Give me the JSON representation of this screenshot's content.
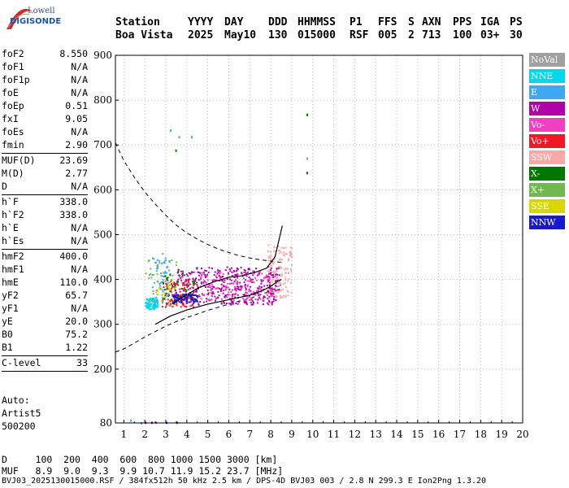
{
  "logo": {
    "line1": "Lowell",
    "line2": "DIGISONDE"
  },
  "header": {
    "labels": [
      "Station",
      "YYYY",
      "DAY",
      "DDD",
      "HHMMSS",
      "P1",
      "FFS",
      "S",
      "AXN",
      "PPS",
      "IGA",
      "PS"
    ],
    "values": [
      "Boa Vista",
      "2025",
      "May10",
      "130",
      "015000",
      "RSF",
      "005",
      "2",
      "713",
      "100",
      "03+",
      "30"
    ]
  },
  "params": [
    {
      "label": "foF2",
      "value": "8.550"
    },
    {
      "label": "foF1",
      "value": "N/A"
    },
    {
      "label": "foF1p",
      "value": "N/A"
    },
    {
      "label": "foE",
      "value": "N/A"
    },
    {
      "label": "foEp",
      "value": "0.51"
    },
    {
      "label": "fxI",
      "value": "9.05"
    },
    {
      "label": "foEs",
      "value": "N/A"
    },
    {
      "label": "fmin",
      "value": "2.90"
    },
    {
      "sep": true
    },
    {
      "label": "MUF(D)",
      "value": "23.69"
    },
    {
      "label": "M(D)",
      "value": "2.77"
    },
    {
      "label": "D",
      "value": "N/A"
    },
    {
      "sep": true
    },
    {
      "label": "h`F",
      "value": "338.0"
    },
    {
      "label": "h`F2",
      "value": "338.0"
    },
    {
      "label": "h`E",
      "value": "N/A"
    },
    {
      "label": "h`Es",
      "value": "N/A"
    },
    {
      "sep": true
    },
    {
      "label": "hmF2",
      "value": "400.0"
    },
    {
      "label": "hmF1",
      "value": "N/A"
    },
    {
      "label": "hmE",
      "value": "110.0"
    },
    {
      "label": "yF2",
      "value": "65.7"
    },
    {
      "label": "yF1",
      "value": "N/A"
    },
    {
      "label": "yE",
      "value": "20.0"
    },
    {
      "label": "B0",
      "value": "75.2"
    },
    {
      "label": "B1",
      "value": "1.22"
    },
    {
      "sep": true
    },
    {
      "label": "C-level",
      "value": "33"
    },
    {
      "sep": true
    }
  ],
  "meta": {
    "auto": "Auto:",
    "artist": "Artist5",
    "version": "500200"
  },
  "legend": [
    {
      "label": "NoVal",
      "color": "#a0a0a0"
    },
    {
      "label": "NNE",
      "color": "#00d8f0"
    },
    {
      "label": "E",
      "color": "#40a8f0"
    },
    {
      "label": "W",
      "color": "#b000a8"
    },
    {
      "label": "Vo-",
      "color": "#f040c0"
    },
    {
      "label": "Vo+",
      "color": "#f01828"
    },
    {
      "label": "SSW",
      "color": "#f8a8a8"
    },
    {
      "label": "X-",
      "color": "#007800"
    },
    {
      "label": "X+",
      "color": "#70b850"
    },
    {
      "label": "SSE",
      "color": "#d8d800"
    },
    {
      "label": "NNW",
      "color": "#1818d0"
    }
  ],
  "distance_table": {
    "d_label": "D",
    "d_values": [
      "100",
      "200",
      "400",
      "600",
      "800",
      "1000",
      "1500",
      "3000"
    ],
    "d_unit": "[km]",
    "muf_label": "MUF",
    "muf_values": [
      "8.9",
      "9.0",
      "9.3",
      "9.9",
      "10.7",
      "11.9",
      "15.2",
      "23.7"
    ],
    "muf_unit": "[MHz]"
  },
  "footer": "BVJ03_2025130015000.RSF / 384fx512h 50 kHz 2.5 km / DPS-4D BVJ03 003 / 2.8 N 299.3 E Ion2Png 1.3.20",
  "chart_data": {
    "type": "scatter",
    "x_ticks": [
      1,
      2,
      3,
      4,
      5,
      6,
      7,
      8,
      9,
      10,
      11,
      12,
      13,
      14,
      15,
      16,
      17,
      18,
      19,
      20
    ],
    "y_ticks": [
      80,
      200,
      300,
      400,
      500,
      600,
      700,
      800,
      900
    ],
    "xlim": [
      0.6,
      20
    ],
    "ylim": [
      80,
      900
    ],
    "grid": true,
    "legend_position": "right",
    "profile_line": [
      [
        2.5,
        300
      ],
      [
        3.2,
        318
      ],
      [
        4.0,
        332
      ],
      [
        5.0,
        345
      ],
      [
        6.0,
        355
      ],
      [
        7.0,
        365
      ],
      [
        7.6,
        375
      ],
      [
        8.0,
        385
      ],
      [
        8.3,
        395
      ],
      [
        8.5,
        400
      ]
    ],
    "trace_line": [
      [
        3.3,
        345
      ],
      [
        3.8,
        360
      ],
      [
        4.5,
        380
      ],
      [
        5.3,
        395
      ],
      [
        6.0,
        405
      ],
      [
        6.6,
        408
      ],
      [
        7.2,
        415
      ],
      [
        7.8,
        425
      ],
      [
        8.2,
        450
      ],
      [
        8.55,
        520
      ]
    ],
    "muf_curve_upper": [
      [
        0.6,
        705
      ],
      [
        1.0,
        665
      ],
      [
        1.5,
        628
      ],
      [
        2.0,
        595
      ],
      [
        2.5,
        568
      ],
      [
        3.0,
        543
      ],
      [
        3.5,
        521
      ],
      [
        4.0,
        504
      ],
      [
        4.5,
        490
      ],
      [
        5.0,
        478
      ],
      [
        5.5,
        468
      ],
      [
        6.0,
        460
      ],
      [
        6.5,
        453
      ],
      [
        7.0,
        448
      ],
      [
        7.5,
        444
      ],
      [
        8.0,
        441
      ],
      [
        8.5,
        438
      ]
    ],
    "muf_curve_lower": [
      [
        0.6,
        238
      ],
      [
        1.0,
        245
      ],
      [
        1.5,
        258
      ],
      [
        2.0,
        272
      ],
      [
        2.5,
        284
      ],
      [
        3.0,
        296
      ],
      [
        3.5,
        306
      ],
      [
        4.0,
        315
      ],
      [
        4.5,
        323
      ],
      [
        5.0,
        331
      ],
      [
        5.5,
        338
      ],
      [
        6.0,
        345
      ],
      [
        6.5,
        352
      ],
      [
        7.0,
        358
      ],
      [
        7.5,
        366
      ],
      [
        8.0,
        375
      ],
      [
        8.5,
        388
      ]
    ],
    "clusters": [
      {
        "name": "NNE",
        "color": "#00d8f0",
        "x": [
          2.0,
          2.6
        ],
        "y": [
          335,
          360
        ],
        "n": 90
      },
      {
        "name": "E",
        "color": "#40a8f0",
        "x": [
          2.3,
          3.2
        ],
        "y": [
          340,
          450
        ],
        "n": 70
      },
      {
        "name": "W",
        "color": "#b000a8",
        "x": [
          3.4,
          8.4
        ],
        "y": [
          345,
          430
        ],
        "n": 420
      },
      {
        "name": "Vo-",
        "color": "#f040c0",
        "x": [
          4.5,
          8.0
        ],
        "y": [
          355,
          420
        ],
        "n": 120
      },
      {
        "name": "Vo+",
        "color": "#f01828",
        "x": [
          2.8,
          4.3
        ],
        "y": [
          340,
          400
        ],
        "n": 110
      },
      {
        "name": "SSW",
        "color": "#f8a8a8",
        "x": [
          7.8,
          9.0
        ],
        "y": [
          360,
          480
        ],
        "n": 140
      },
      {
        "name": "X-",
        "color": "#007800",
        "x": [
          2.8,
          4.5
        ],
        "y": [
          345,
          420
        ],
        "n": 40
      },
      {
        "name": "X+",
        "color": "#70b850",
        "x": [
          2.0,
          3.5
        ],
        "y": [
          340,
          460
        ],
        "n": 40
      },
      {
        "name": "SSE",
        "color": "#d8d800",
        "x": [
          2.5,
          4.0
        ],
        "y": [
          350,
          400
        ],
        "n": 20
      },
      {
        "name": "NNW",
        "color": "#1818d0",
        "x": [
          3.3,
          4.5
        ],
        "y": [
          350,
          368
        ],
        "n": 70
      }
    ],
    "isolated_points": [
      {
        "x": 9.7,
        "y": 770,
        "color": "#007800"
      },
      {
        "x": 9.7,
        "y": 672,
        "color": "#70b850"
      },
      {
        "x": 9.7,
        "y": 640,
        "color": "#007800"
      },
      {
        "x": 3.45,
        "y": 690,
        "color": "#007800"
      },
      {
        "x": 3.2,
        "y": 735,
        "color": "#40a8f0"
      },
      {
        "x": 3.6,
        "y": 720,
        "color": "#40a8f0"
      },
      {
        "x": 4.2,
        "y": 720,
        "color": "#40a8f0"
      },
      {
        "x": 1.3,
        "y": 88,
        "color": "#40a8f0"
      },
      {
        "x": 2.0,
        "y": 83,
        "color": "#b000a8"
      },
      {
        "x": 2.3,
        "y": 83,
        "color": "#b000a8"
      },
      {
        "x": 2.5,
        "y": 83,
        "color": "#f040c0"
      },
      {
        "x": 3.0,
        "y": 83,
        "color": "#b000a8"
      },
      {
        "x": 3.5,
        "y": 83,
        "color": "#b000a8"
      },
      {
        "x": 1.8,
        "y": 82,
        "color": "#40a8f0"
      }
    ]
  }
}
